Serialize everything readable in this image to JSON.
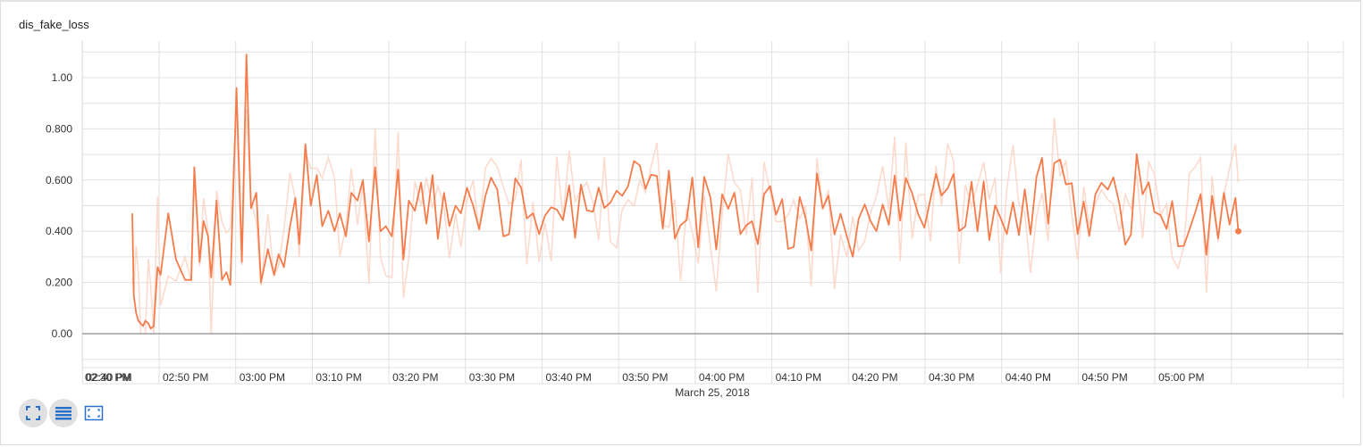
{
  "card": {
    "title": "dis_fake_loss"
  },
  "chart_data": {
    "type": "line",
    "title": "dis_fake_loss",
    "xlabel": "March 25, 2018",
    "ylabel": "",
    "x_tick_labels": [
      "02:30 PM",
      "02:40 PM",
      "02:50 PM",
      "03:00 PM",
      "03:10 PM",
      "03:20 PM",
      "03:30 PM",
      "03:40 PM",
      "03:50 PM",
      "04:00 PM",
      "04:10 PM",
      "04:20 PM",
      "04:30 PM",
      "04:40 PM",
      "04:50 PM",
      "05:00 PM"
    ],
    "y_tick_labels": [
      "0.00",
      "0.200",
      "0.400",
      "0.600",
      "0.800",
      "1.00"
    ],
    "y_ticks": [
      0,
      0.2,
      0.4,
      0.6,
      0.8,
      1.0
    ],
    "xlim_minutes_after_1430": [
      -1,
      164.5
    ],
    "ylim": [
      -0.13,
      1.15
    ],
    "grid": true,
    "colors": {
      "smoothed": "#f57c4a",
      "raw": "#fbd5c6",
      "axis": "#9e9e9e",
      "grid": "#e0e0e0"
    },
    "series": [
      {
        "smoothed": true,
        "x_minutes_after_1430": [
          6.5,
          6.7,
          7.0,
          7.3,
          7.6,
          7.9,
          8.2,
          8.6,
          8.9,
          9.3,
          9.8,
          10.2,
          11.2,
          12.2,
          13.4,
          14.2,
          14.6,
          15.3,
          15.8,
          16.4,
          16.8,
          17.5,
          18.2,
          18.8,
          19.3,
          20.1,
          20.8,
          21.4,
          22.0,
          22.7,
          23.3,
          24.2,
          25.0,
          25.6,
          26.3,
          27.1,
          27.8,
          28.3,
          29.1,
          29.8,
          30.6,
          31.3,
          32.1,
          32.9,
          33.6,
          34.4,
          35.1,
          35.9,
          36.6,
          37.4,
          38.2,
          38.9,
          39.6,
          40.4,
          41.2,
          41.9,
          42.6,
          43.4,
          44.2,
          44.9,
          45.7,
          46.4,
          47.2,
          47.9,
          48.7,
          49.4,
          50.2,
          51.0
        ],
        "y": [
          0.47,
          0.15,
          0.08,
          0.05,
          0.04,
          0.03,
          0.05,
          0.04,
          0.02,
          0.03,
          0.26,
          0.23,
          0.47,
          0.29,
          0.21,
          0.21,
          0.65,
          0.28,
          0.44,
          0.38,
          0.22,
          0.52,
          0.21,
          0.24,
          0.19,
          0.96,
          0.28,
          1.09,
          0.49,
          0.55,
          0.2,
          0.33,
          0.23,
          0.31,
          0.26,
          0.42,
          0.53,
          0.35,
          0.74,
          0.5,
          0.62,
          0.42,
          0.48,
          0.4,
          0.47,
          0.38,
          0.55,
          0.52,
          0.6,
          0.36,
          0.65,
          0.4,
          0.42,
          0.38,
          0.64,
          0.29,
          0.52,
          0.48,
          0.59,
          0.43,
          0.62,
          0.37,
          0.55,
          0.42,
          0.5,
          0.47,
          0.57,
          0.5
        ]
      }
    ]
  },
  "toolbar": {
    "buttons": [
      {
        "icon": "fit-to-domain-icon"
      },
      {
        "icon": "toggle-log-scale-icon"
      },
      {
        "icon": "expand-chart-icon"
      }
    ]
  }
}
